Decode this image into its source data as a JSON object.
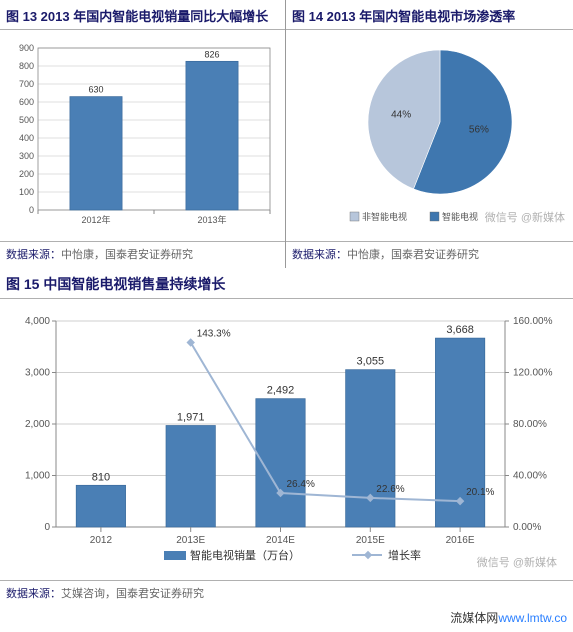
{
  "colors": {
    "title": "#1a1a6a",
    "axis": "#888888",
    "grid": "#bfbfbf",
    "bar": "#4a7fb5",
    "bar_border": "#3a6a9c",
    "pie_a": "#3f77af",
    "pie_b": "#b7c6db",
    "line": "#9fb6d4",
    "marker": "#9fb6d4",
    "tick_text": "#555555",
    "value_text": "#333333"
  },
  "fig13": {
    "title": "图 13 2013 年国内智能电视销量同比大幅增长",
    "source_label": "数据来源：",
    "source_text": "中怡康，国泰君安证券研究",
    "type": "bar",
    "categories": [
      "2012年",
      "2013年"
    ],
    "values": [
      630,
      826
    ],
    "ylim": [
      0,
      900
    ],
    "ytick_step": 100,
    "bar_color": "#4a7fb5",
    "bar_width": 0.45,
    "title_fontsize": 13,
    "tick_fontsize": 9,
    "value_fontsize": 9
  },
  "fig14": {
    "title": "图 14 2013 年国内智能电视市场渗透率",
    "source_label": "数据来源：",
    "source_text": "中怡康，国泰君安证券研究",
    "type": "pie",
    "slices": [
      {
        "label": "智能电视",
        "value": 56,
        "display": "56%",
        "color": "#3f77af"
      },
      {
        "label": "非智能电视",
        "value": 44,
        "display": "44%",
        "color": "#b7c6db"
      }
    ],
    "legend_items": [
      "非智能电视",
      "智能电视"
    ],
    "title_fontsize": 13,
    "label_fontsize": 10,
    "watermark": "微信号 @新媒体"
  },
  "fig15": {
    "title": "图 15 中国智能电视销售量持续增长",
    "source_label": "数据来源：",
    "source_text": "艾媒咨询，国泰君安证券研究",
    "type": "bar+line",
    "categories": [
      "2012",
      "2013E",
      "2014E",
      "2015E",
      "2016E"
    ],
    "bar_values": [
      810,
      1971,
      2492,
      3055,
      3668
    ],
    "line_values": [
      null,
      143.3,
      26.4,
      22.6,
      20.1
    ],
    "line_labels": [
      "",
      "143.3%",
      "26.4%",
      "22.6%",
      "20.1%"
    ],
    "y1": {
      "lim": [
        0,
        4000
      ],
      "tick_step": 1000
    },
    "y2": {
      "lim": [
        0,
        160
      ],
      "tick_step": 40,
      "suffix": ".00%"
    },
    "bar_color": "#4a7fb5",
    "line_color": "#9fb6d4",
    "bar_width": 0.55,
    "legend": {
      "bar": "智能电视销量（万台）",
      "line": "增长率"
    },
    "title_fontsize": 14,
    "tick_fontsize": 10,
    "value_fontsize": 11,
    "watermark": "微信号 @新媒体"
  },
  "footer": {
    "text1": "流媒体网",
    "text2": "www.lmtw.co"
  }
}
